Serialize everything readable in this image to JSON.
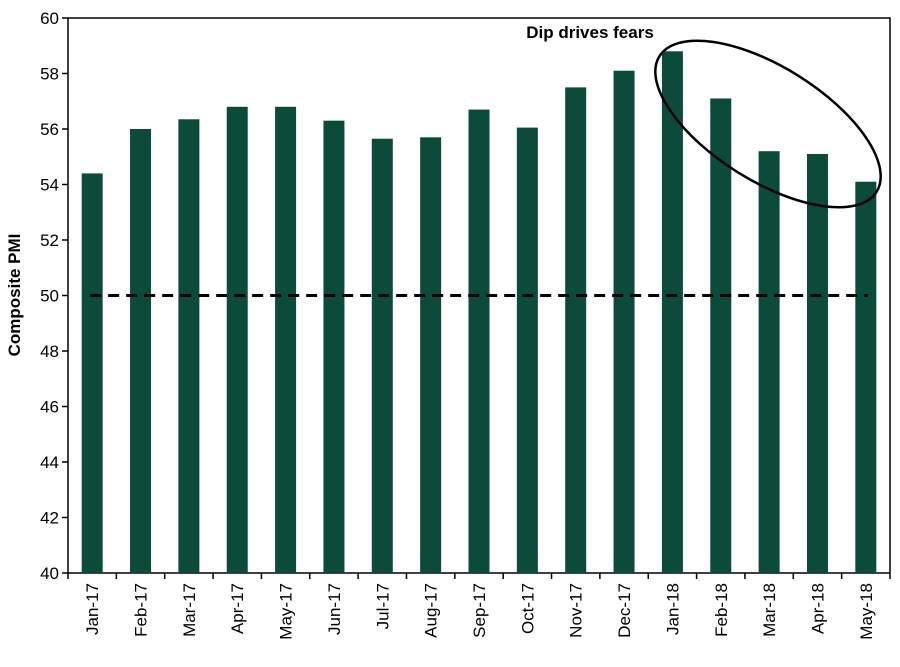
{
  "chart_data": {
    "type": "bar",
    "categories": [
      "Jan-17",
      "Feb-17",
      "Mar-17",
      "Apr-17",
      "May-17",
      "Jun-17",
      "Jul-17",
      "Aug-17",
      "Sep-17",
      "Oct-17",
      "Nov-17",
      "Dec-17",
      "Jan-18",
      "Feb-18",
      "Mar-18",
      "Apr-18",
      "May-18"
    ],
    "values": [
      54.4,
      56.0,
      56.35,
      56.8,
      56.8,
      56.3,
      55.65,
      55.7,
      56.7,
      56.05,
      57.5,
      58.1,
      58.8,
      57.1,
      55.2,
      55.1,
      54.1
    ],
    "title": "",
    "xlabel": "",
    "ylabel": "Composite PMI",
    "ylim": [
      40,
      60
    ],
    "yticks": [
      40,
      42,
      44,
      46,
      48,
      50,
      52,
      54,
      56,
      58,
      60
    ],
    "reference_line": 50,
    "annotation": "Dip drives fears",
    "grid": false,
    "legend": "none",
    "colors": {
      "bar": "#0c4a3a",
      "reference_line": "#000000",
      "axis": "#000000"
    }
  }
}
